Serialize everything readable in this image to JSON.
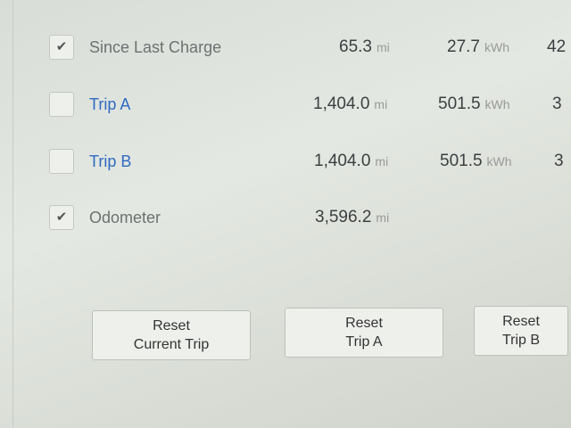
{
  "rows": [
    {
      "label": "Since Last Charge",
      "checked": true,
      "blue": false,
      "distance": "65.3",
      "distance_unit": "mi",
      "energy": "27.7",
      "energy_unit": "kWh",
      "extra": "42"
    },
    {
      "label": "Trip A",
      "checked": false,
      "blue": true,
      "distance": "1,404.0",
      "distance_unit": "mi",
      "energy": "501.5",
      "energy_unit": "kWh",
      "extra": "3"
    },
    {
      "label": "Trip B",
      "checked": false,
      "blue": true,
      "distance": "1,404.0",
      "distance_unit": "mi",
      "energy": "501.5",
      "energy_unit": "kWh",
      "extra": "3"
    },
    {
      "label": "Odometer",
      "checked": true,
      "blue": false,
      "distance": "3,596.2",
      "distance_unit": "mi"
    }
  ],
  "buttons": [
    {
      "line1": "Reset",
      "line2": "Current Trip"
    },
    {
      "line1": "Reset",
      "line2": "Trip A"
    },
    {
      "line1": "Reset",
      "line2": "Trip B"
    }
  ],
  "icons": {
    "check": "check-icon"
  }
}
